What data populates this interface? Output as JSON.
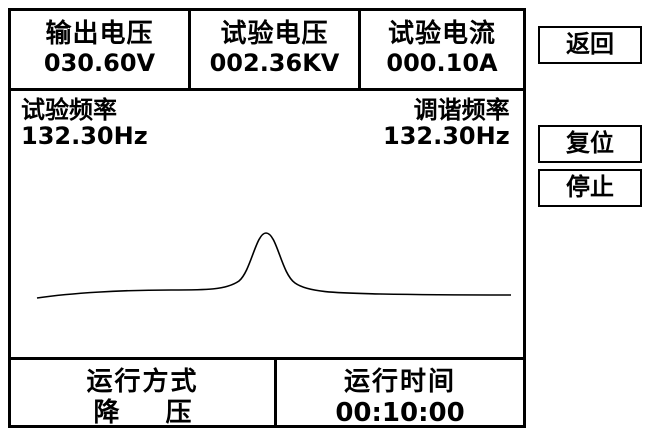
{
  "readouts": [
    {
      "label": "输出电压",
      "value": "030.60V"
    },
    {
      "label": "试验电压",
      "value": "002.36KV"
    },
    {
      "label": "试验电流",
      "value": "000.10A"
    }
  ],
  "frequency": {
    "test": {
      "label": "试验频率",
      "value": "132.30Hz"
    },
    "tuning": {
      "label": "调谐频率",
      "value": "132.30Hz"
    }
  },
  "bottom": {
    "mode": {
      "label": "运行方式",
      "value": "降压"
    },
    "time": {
      "label": "运行时间",
      "value": "00:10:00"
    }
  },
  "buttons": {
    "back": "返回",
    "reset": "复位",
    "stop": "停止"
  }
}
